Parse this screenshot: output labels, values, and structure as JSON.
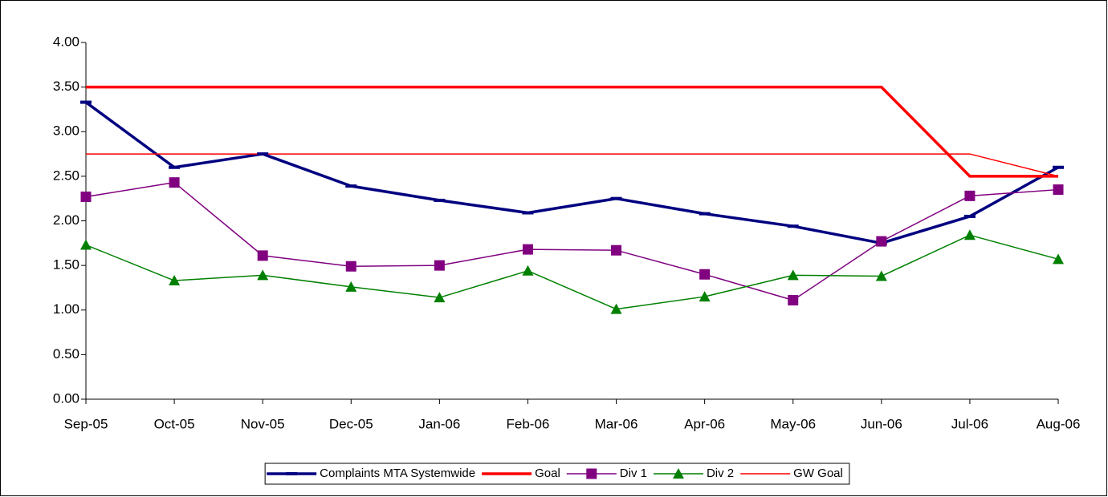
{
  "chart_data": {
    "type": "line",
    "categories": [
      "Sep-05",
      "Oct-05",
      "Nov-05",
      "Dec-05",
      "Jan-06",
      "Feb-06",
      "Mar-06",
      "Apr-06",
      "May-06",
      "Jun-06",
      "Jul-06",
      "Aug-06"
    ],
    "series": [
      {
        "name": "Complaints MTA Systemwide",
        "color": "#000080",
        "line_width": 3.5,
        "marker": "dash",
        "values": [
          3.33,
          2.6,
          2.75,
          2.39,
          2.23,
          2.09,
          2.25,
          2.08,
          1.94,
          1.75,
          2.05,
          2.6
        ]
      },
      {
        "name": "Goal",
        "color": "#ff0000",
        "line_width": 3.5,
        "marker": "none",
        "values": [
          3.5,
          3.5,
          3.5,
          3.5,
          3.5,
          3.5,
          3.5,
          3.5,
          3.5,
          3.5,
          2.5,
          2.5
        ]
      },
      {
        "name": "Div 1",
        "color": "#800080",
        "line_width": 1.5,
        "marker": "square",
        "values": [
          2.27,
          2.43,
          1.61,
          1.49,
          1.5,
          1.68,
          1.67,
          1.4,
          1.11,
          1.77,
          2.28,
          2.35
        ]
      },
      {
        "name": "Div 2",
        "color": "#008000",
        "line_width": 1.5,
        "marker": "triangle",
        "values": [
          1.73,
          1.33,
          1.39,
          1.26,
          1.14,
          1.44,
          1.01,
          1.15,
          1.39,
          1.38,
          1.84,
          1.57
        ]
      },
      {
        "name": "GW Goal",
        "color": "#ff0000",
        "line_width": 1.5,
        "marker": "none",
        "values": [
          2.75,
          2.75,
          2.75,
          2.75,
          2.75,
          2.75,
          2.75,
          2.75,
          2.75,
          2.75,
          2.75,
          2.5
        ]
      }
    ],
    "ylim": [
      0,
      4
    ],
    "yticks": [
      {
        "value": 0,
        "label": "0.00"
      },
      {
        "value": 0.5,
        "label": "0.50"
      },
      {
        "value": 1,
        "label": "1.00"
      },
      {
        "value": 1.5,
        "label": "1.50"
      },
      {
        "value": 2,
        "label": "2.00"
      },
      {
        "value": 2.5,
        "label": "2.50"
      },
      {
        "value": 3,
        "label": "3.00"
      },
      {
        "value": 3.5,
        "label": "3.50"
      },
      {
        "value": 4,
        "label": "4.00"
      }
    ],
    "grid": false,
    "legend": "bottom"
  }
}
